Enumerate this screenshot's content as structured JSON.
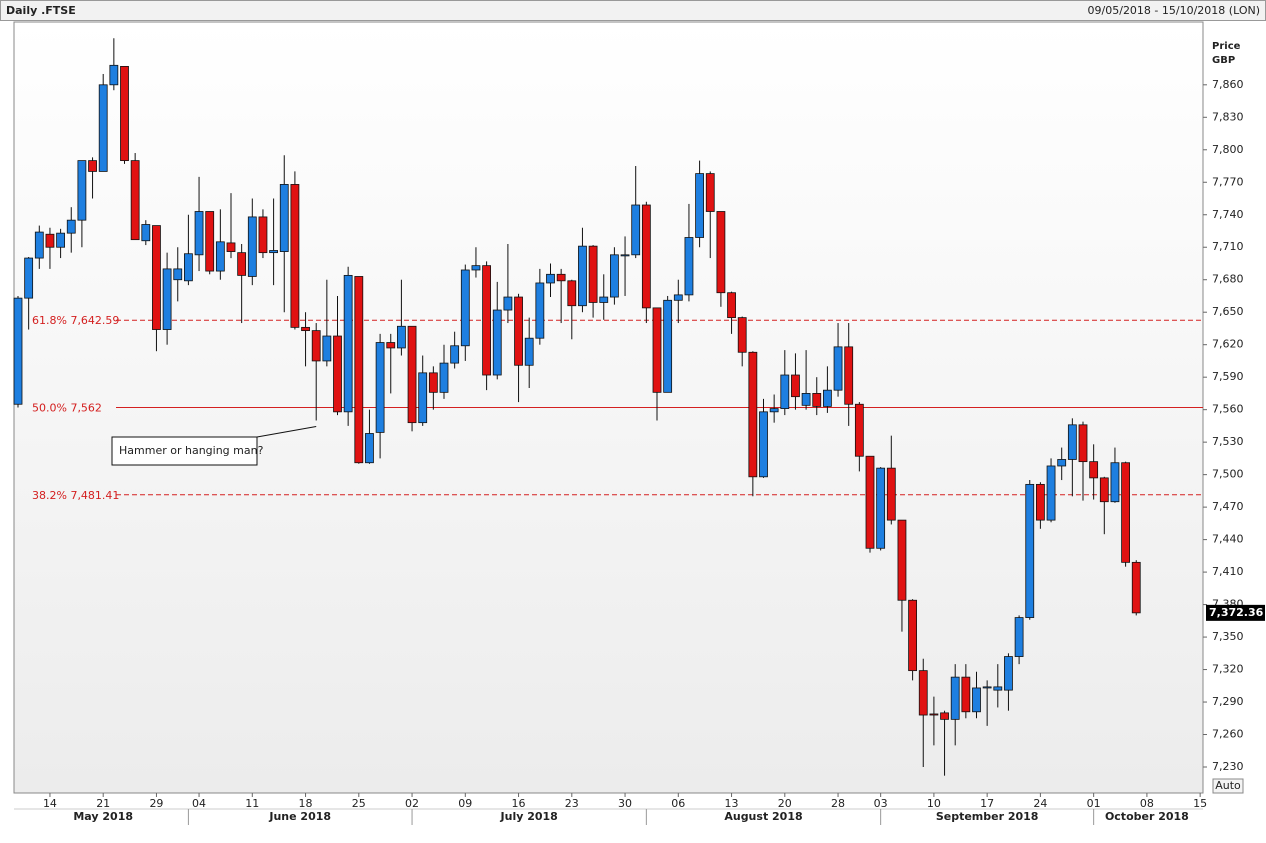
{
  "chart_data": {
    "type": "candlestick",
    "title": "Daily .FTSE",
    "date_range": "09/05/2018 - 15/10/2018 (LON)",
    "y_axis_label": [
      "Price",
      "GBP"
    ],
    "auto_button": "Auto",
    "annotation": "Hammer or hanging man?",
    "up_color": "#1e7fe0",
    "down_color": "#e01212",
    "x": [
      "2018-05-09",
      "2018-05-10",
      "2018-05-11",
      "2018-05-14",
      "2018-05-15",
      "2018-05-16",
      "2018-05-17",
      "2018-05-18",
      "2018-05-21",
      "2018-05-22",
      "2018-05-23",
      "2018-05-24",
      "2018-05-25",
      "2018-05-29",
      "2018-05-30",
      "2018-05-31",
      "2018-06-01",
      "2018-06-04",
      "2018-06-05",
      "2018-06-06",
      "2018-06-07",
      "2018-06-08",
      "2018-06-11",
      "2018-06-12",
      "2018-06-13",
      "2018-06-14",
      "2018-06-15",
      "2018-06-18",
      "2018-06-19",
      "2018-06-20",
      "2018-06-21",
      "2018-06-22",
      "2018-06-25",
      "2018-06-26",
      "2018-06-27",
      "2018-06-28",
      "2018-06-29",
      "2018-07-02",
      "2018-07-03",
      "2018-07-04",
      "2018-07-05",
      "2018-07-06",
      "2018-07-09",
      "2018-07-10",
      "2018-07-11",
      "2018-07-12",
      "2018-07-13",
      "2018-07-16",
      "2018-07-17",
      "2018-07-18",
      "2018-07-19",
      "2018-07-20",
      "2018-07-23",
      "2018-07-24",
      "2018-07-25",
      "2018-07-26",
      "2018-07-27",
      "2018-07-30",
      "2018-07-31",
      "2018-08-01",
      "2018-08-02",
      "2018-08-03",
      "2018-08-06",
      "2018-08-07",
      "2018-08-08",
      "2018-08-09",
      "2018-08-10",
      "2018-08-13",
      "2018-08-14",
      "2018-08-15",
      "2018-08-16",
      "2018-08-17",
      "2018-08-20",
      "2018-08-21",
      "2018-08-22",
      "2018-08-23",
      "2018-08-24",
      "2018-08-28",
      "2018-08-29",
      "2018-08-30",
      "2018-08-31",
      "2018-09-03",
      "2018-09-04",
      "2018-09-05",
      "2018-09-06",
      "2018-09-07",
      "2018-09-10",
      "2018-09-11",
      "2018-09-12",
      "2018-09-13",
      "2018-09-14",
      "2018-09-17",
      "2018-09-18",
      "2018-09-19",
      "2018-09-20",
      "2018-09-21",
      "2018-09-24",
      "2018-09-25",
      "2018-09-26",
      "2018-09-27",
      "2018-09-28",
      "2018-10-01",
      "2018-10-02",
      "2018-10-03",
      "2018-10-04",
      "2018-10-05"
    ],
    "open": [
      7565,
      7663,
      7700,
      7722,
      7710,
      7723,
      7735,
      7790,
      7780,
      7860,
      7877,
      7790,
      7716,
      7730,
      7634,
      7680,
      7679,
      7703,
      7743,
      7688,
      7714,
      7705,
      7683,
      7738,
      7705,
      7706,
      7768,
      7636,
      7633,
      7605,
      7628,
      7558,
      7683,
      7511,
      7539,
      7622,
      7617,
      7637,
      7548,
      7594,
      7576,
      7603,
      7619,
      7689,
      7693,
      7592,
      7652,
      7664,
      7601,
      7626,
      7677,
      7685,
      7679,
      7656,
      7711,
      7659,
      7664,
      7702,
      7703,
      7749,
      7654,
      7576,
      7661,
      7666,
      7719,
      7778,
      7743,
      7668,
      7645,
      7613,
      7498,
      7558,
      7561,
      7592,
      7564,
      7575,
      7563,
      7578,
      7618,
      7565,
      7517,
      7432,
      7506,
      7458,
      7384,
      7319,
      7279,
      7280,
      7274,
      7313,
      7281,
      7303,
      7301,
      7301,
      7332,
      7368,
      7491,
      7458,
      7508,
      7514,
      7546,
      7512,
      7497,
      7475,
      7511,
      7419
    ],
    "high": [
      7665,
      7701,
      7730,
      7728,
      7727,
      7747,
      7790,
      7793,
      7870,
      7903,
      7877,
      7797,
      7735,
      7730,
      7705,
      7710,
      7740,
      7775,
      7743,
      7745,
      7760,
      7713,
      7755,
      7745,
      7755,
      7795,
      7780,
      7650,
      7640,
      7680,
      7665,
      7692,
      7683,
      7560,
      7630,
      7630,
      7680,
      7637,
      7610,
      7600,
      7620,
      7632,
      7694,
      7710,
      7697,
      7678,
      7713,
      7667,
      7645,
      7690,
      7695,
      7690,
      7680,
      7728,
      7712,
      7685,
      7710,
      7720,
      7785,
      7752,
      7654,
      7665,
      7680,
      7750,
      7790,
      7780,
      7743,
      7669,
      7646,
      7614,
      7570,
      7574,
      7615,
      7612,
      7615,
      7590,
      7600,
      7640,
      7640,
      7567,
      7517,
      7507,
      7536,
      7458,
      7385,
      7330,
      7295,
      7282,
      7325,
      7325,
      7318,
      7310,
      7325,
      7335,
      7370,
      7495,
      7493,
      7515,
      7525,
      7552,
      7549,
      7528,
      7498,
      7525,
      7512,
      7421
    ],
    "low": [
      7562,
      7634,
      7690,
      7690,
      7700,
      7705,
      7710,
      7755,
      7780,
      7855,
      7787,
      7717,
      7712,
      7614,
      7620,
      7660,
      7675,
      7688,
      7685,
      7680,
      7700,
      7640,
      7675,
      7700,
      7675,
      7650,
      7634,
      7600,
      7550,
      7600,
      7555,
      7545,
      7510,
      7510,
      7515,
      7575,
      7610,
      7540,
      7545,
      7560,
      7570,
      7598,
      7605,
      7682,
      7578,
      7588,
      7640,
      7567,
      7580,
      7620,
      7664,
      7640,
      7625,
      7650,
      7645,
      7643,
      7657,
      7665,
      7700,
      7640,
      7550,
      7576,
      7640,
      7660,
      7710,
      7700,
      7655,
      7630,
      7600,
      7480,
      7497,
      7548,
      7555,
      7560,
      7560,
      7555,
      7557,
      7572,
      7545,
      7503,
      7428,
      7430,
      7454,
      7355,
      7310,
      7230,
      7250,
      7222,
      7250,
      7275,
      7275,
      7268,
      7285,
      7282,
      7325,
      7366,
      7450,
      7456,
      7495,
      7480,
      7476,
      7477,
      7445,
      7474,
      7415,
      7370
    ],
    "close": [
      7663,
      7700,
      7724,
      7710,
      7723,
      7735,
      7790,
      7780,
      7860,
      7878,
      7790,
      7717,
      7731,
      7634,
      7690,
      7690,
      7704,
      7743,
      7688,
      7715,
      7706,
      7684,
      7738,
      7705,
      7707,
      7768,
      7636,
      7633,
      7605,
      7628,
      7558,
      7684,
      7511,
      7538,
      7622,
      7617,
      7637,
      7548,
      7594,
      7576,
      7603,
      7619,
      7689,
      7693,
      7592,
      7652,
      7664,
      7601,
      7626,
      7677,
      7685,
      7679,
      7656,
      7711,
      7659,
      7664,
      7703,
      7703,
      7749,
      7654,
      7576,
      7661,
      7666,
      7719,
      7778,
      7743,
      7668,
      7645,
      7613,
      7498,
      7558,
      7561,
      7592,
      7572,
      7575,
      7563,
      7578,
      7618,
      7565,
      7517,
      7432,
      7506,
      7458,
      7384,
      7319,
      7278,
      7278,
      7274,
      7313,
      7281,
      7303,
      7304,
      7304,
      7332,
      7368,
      7491,
      7458,
      7508,
      7514,
      7546,
      7512,
      7497,
      7475,
      7511,
      7419,
      7372.36
    ],
    "close_value_labels": {
      "105": "7,372.36"
    },
    "levels": [
      {
        "label": "61.8% 7,642.59",
        "value": 7642.59,
        "dashed": true
      },
      {
        "label": "50.0% 7,562",
        "value": 7562,
        "dashed": false
      },
      {
        "label": "38.2% 7,481.41",
        "value": 7481.41,
        "dashed": true
      }
    ],
    "level_color": "#d42020",
    "ylim": [
      7206,
      7918
    ],
    "yticks": [
      {
        "value": 7230,
        "label": "7,230"
      },
      {
        "value": 7260,
        "label": "7,260"
      },
      {
        "value": 7290,
        "label": "7,290"
      },
      {
        "value": 7320,
        "label": "7,320"
      },
      {
        "value": 7350,
        "label": "7,350"
      },
      {
        "value": 7380,
        "label": "7,380"
      },
      {
        "value": 7410,
        "label": "7,410"
      },
      {
        "value": 7440,
        "label": "7,440"
      },
      {
        "value": 7470,
        "label": "7,470"
      },
      {
        "value": 7500,
        "label": "7,500"
      },
      {
        "value": 7530,
        "label": "7,530"
      },
      {
        "value": 7560,
        "label": "7,560"
      },
      {
        "value": 7590,
        "label": "7,590"
      },
      {
        "value": 7620,
        "label": "7,620"
      },
      {
        "value": 7650,
        "label": "7,650"
      },
      {
        "value": 7680,
        "label": "7,680"
      },
      {
        "value": 7710,
        "label": "7,710"
      },
      {
        "value": 7740,
        "label": "7,740"
      },
      {
        "value": 7770,
        "label": "7,770"
      },
      {
        "value": 7800,
        "label": "7,800"
      },
      {
        "value": 7830,
        "label": "7,830"
      },
      {
        "value": 7860,
        "label": "7,860"
      }
    ],
    "xticks": [
      {
        "value": "2018-05-14",
        "label": "14"
      },
      {
        "value": "2018-05-21",
        "label": "21"
      },
      {
        "value": "2018-05-29",
        "label": "29"
      },
      {
        "value": "2018-06-04",
        "label": "04"
      },
      {
        "value": "2018-06-11",
        "label": "11"
      },
      {
        "value": "2018-06-18",
        "label": "18"
      },
      {
        "value": "2018-06-25",
        "label": "25"
      },
      {
        "value": "2018-07-02",
        "label": "02"
      },
      {
        "value": "2018-07-09",
        "label": "09"
      },
      {
        "value": "2018-07-16",
        "label": "16"
      },
      {
        "value": "2018-07-23",
        "label": "23"
      },
      {
        "value": "2018-07-30",
        "label": "30"
      },
      {
        "value": "2018-08-06",
        "label": "06"
      },
      {
        "value": "2018-08-13",
        "label": "13"
      },
      {
        "value": "2018-08-20",
        "label": "20"
      },
      {
        "value": "2018-08-28",
        "label": "28"
      },
      {
        "value": "2018-09-03",
        "label": "03"
      },
      {
        "value": "2018-09-10",
        "label": "10"
      },
      {
        "value": "2018-09-17",
        "label": "17"
      },
      {
        "value": "2018-09-24",
        "label": "24"
      },
      {
        "value": "2018-10-01",
        "label": "01"
      },
      {
        "value": "2018-10-08",
        "label": "08"
      },
      {
        "value": "2018-10-15",
        "label": "15"
      }
    ],
    "months": [
      {
        "label": "May 2018",
        "start": "2018-05-09"
      },
      {
        "label": "June 2018",
        "start": "2018-06-01"
      },
      {
        "label": "July 2018",
        "start": "2018-07-02"
      },
      {
        "label": "August 2018",
        "start": "2018-08-01"
      },
      {
        "label": "September 2018",
        "start": "2018-09-03"
      },
      {
        "label": "October 2018",
        "start": "2018-10-01"
      }
    ]
  }
}
